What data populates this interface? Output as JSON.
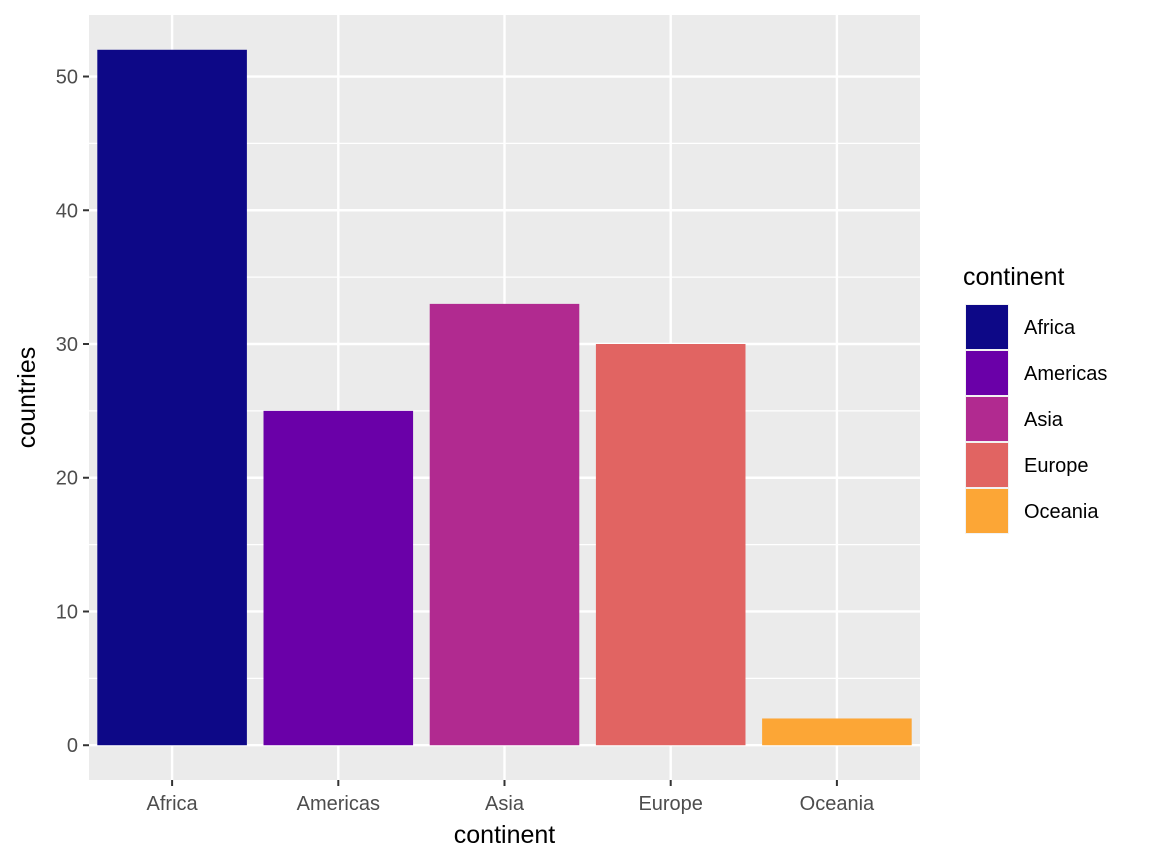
{
  "chart_data": {
    "type": "bar",
    "categories": [
      "Africa",
      "Americas",
      "Asia",
      "Europe",
      "Oceania"
    ],
    "values": [
      52,
      25,
      33,
      30,
      2
    ],
    "colors": [
      "#0D0887",
      "#6A00A8",
      "#B12A90",
      "#E16462",
      "#FCA636"
    ],
    "xlabel": "continent",
    "ylabel": "countries",
    "ylim": [
      -2.6,
      54.6
    ],
    "yticks": [
      0,
      10,
      20,
      30,
      40,
      50
    ],
    "ytick_labels": [
      "0",
      "10",
      "20",
      "30",
      "40",
      "50"
    ],
    "grid": true,
    "panel_background": "#EBEBEB",
    "legend": {
      "title": "continent",
      "position": "right",
      "entries": [
        "Africa",
        "Americas",
        "Asia",
        "Europe",
        "Oceania"
      ]
    }
  }
}
